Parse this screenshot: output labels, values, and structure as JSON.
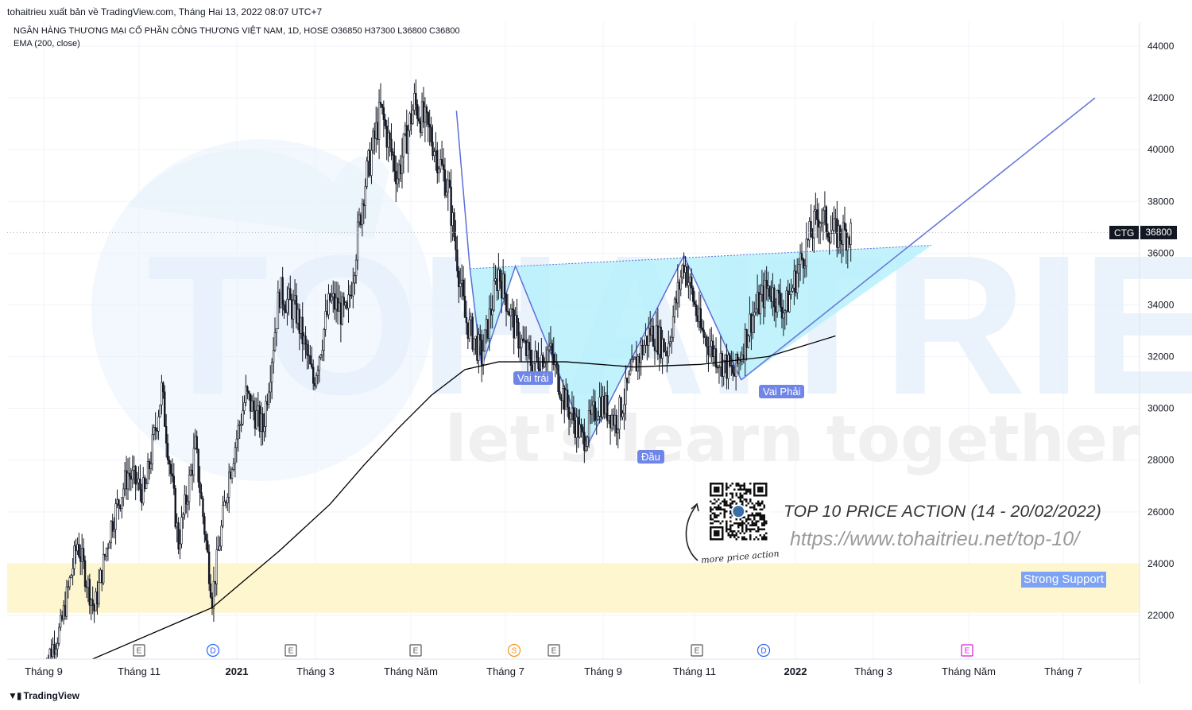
{
  "header": {
    "publisher": "tohaitrieu xuất bản về TradingView.com, Tháng Hai 13, 2022 08:07 UTC+7",
    "symbol_line": "NGÂN HÀNG THƯƠNG MẠI CỔ PHẦN CÔNG THƯƠNG VIỆT NAM, 1D, HOSE  O36850  H37300  L36800  C36800",
    "indicator": "EMA (200, close)"
  },
  "ticker": {
    "symbol": "CTG",
    "price": "36800"
  },
  "watermark": {
    "brand": "TOHAITRIEU",
    "tagline": "let's learn together"
  },
  "labels": {
    "left_shoulder": "Vai trái",
    "head": "Đầu",
    "right_shoulder": "Vai Phải",
    "support": "Strong Support"
  },
  "promo": {
    "title": "TOP 10 PRICE ACTION (14 - 20/02/2022)",
    "url": "https://www.tohaitrieu.net/top-10/",
    "qr_caption": "more price action"
  },
  "footer": {
    "brand": "TradingView"
  },
  "colors": {
    "candle": "#131722",
    "ema": "#000000",
    "pattern_line": "#5b6fd6",
    "pattern_fill": "#b3f0fb",
    "support_zone": "#fdf6cf",
    "trendline": "#6a78dc",
    "label_bg": "#6f86e8"
  },
  "chart_data": {
    "type": "candlestick",
    "y_axis": {
      "ticks": [
        22000,
        24000,
        26000,
        28000,
        30000,
        32000,
        34000,
        36000,
        38000,
        40000,
        42000,
        44000
      ],
      "ylim": [
        20200,
        44700
      ]
    },
    "x_axis": {
      "ticks": [
        {
          "label": "Tháng 9",
          "bold": false
        },
        {
          "label": "Tháng 11",
          "bold": false
        },
        {
          "label": "2021",
          "bold": true
        },
        {
          "label": "Tháng 3",
          "bold": false
        },
        {
          "label": "Tháng Năm",
          "bold": false
        },
        {
          "label": "Tháng 7",
          "bold": false
        },
        {
          "label": "Tháng 9",
          "bold": false
        },
        {
          "label": "Tháng 11",
          "bold": false
        },
        {
          "label": "2022",
          "bold": true
        },
        {
          "label": "Tháng 3",
          "bold": false
        },
        {
          "label": "Tháng Năm",
          "bold": false
        },
        {
          "label": "Tháng 7",
          "bold": false
        }
      ]
    },
    "events": [
      {
        "type": "E",
        "index": 1
      },
      {
        "type": "D",
        "index": 2
      },
      {
        "type": "E",
        "index": 3
      },
      {
        "type": "E",
        "index": 4
      },
      {
        "type": "S",
        "index": 5
      },
      {
        "type": "E",
        "index": 6
      },
      {
        "type": "E",
        "index": 7
      },
      {
        "type": "D",
        "index": 8
      },
      {
        "type": "E",
        "index": 10
      }
    ],
    "price_path": [
      [
        0,
        20000
      ],
      [
        1,
        21500
      ],
      [
        2,
        24800
      ],
      [
        3,
        22200
      ],
      [
        4,
        25500
      ],
      [
        5,
        27500
      ],
      [
        6,
        26700
      ],
      [
        7,
        30700
      ],
      [
        8,
        24800
      ],
      [
        9,
        28500
      ],
      [
        10,
        22700
      ],
      [
        11,
        27500
      ],
      [
        12,
        30500
      ],
      [
        13,
        29200
      ],
      [
        14,
        34500
      ],
      [
        15,
        33700
      ],
      [
        16,
        31000
      ],
      [
        17,
        34200
      ],
      [
        18,
        33500
      ],
      [
        19,
        38500
      ],
      [
        20,
        41500
      ],
      [
        21,
        39000
      ],
      [
        22,
        41800
      ],
      [
        23,
        40500
      ],
      [
        24,
        38500
      ],
      [
        25,
        33500
      ],
      [
        26,
        32000
      ],
      [
        27,
        35300
      ],
      [
        28,
        33000
      ],
      [
        29,
        31700
      ],
      [
        30,
        32300
      ],
      [
        31,
        30200
      ],
      [
        32,
        28800
      ],
      [
        33,
        30300
      ],
      [
        34,
        29500
      ],
      [
        35,
        31500
      ],
      [
        36,
        33000
      ],
      [
        37,
        32300
      ],
      [
        38,
        35700
      ],
      [
        39,
        33000
      ],
      [
        40,
        32000
      ],
      [
        41,
        31300
      ],
      [
        42,
        33500
      ],
      [
        43,
        34700
      ],
      [
        44,
        33800
      ],
      [
        45,
        35800
      ],
      [
        46,
        37500
      ],
      [
        47,
        36700
      ],
      [
        48,
        36800
      ]
    ],
    "ema200": [
      [
        0,
        19500
      ],
      [
        10,
        22300
      ],
      [
        14,
        24500
      ],
      [
        17,
        26300
      ],
      [
        19,
        27800
      ],
      [
        21,
        29200
      ],
      [
        23,
        30500
      ],
      [
        25,
        31500
      ],
      [
        27,
        31800
      ],
      [
        31,
        31800
      ],
      [
        35,
        31600
      ],
      [
        39,
        31700
      ],
      [
        43,
        32000
      ],
      [
        47,
        32800
      ]
    ],
    "pattern": {
      "neckline": [
        35400,
        36300
      ],
      "left_shoulder_low": 31600,
      "head_low": 28600,
      "right_shoulder_low": 31100,
      "target": 42000
    },
    "support_zone": [
      22100,
      24000
    ],
    "last_close": 36800
  }
}
